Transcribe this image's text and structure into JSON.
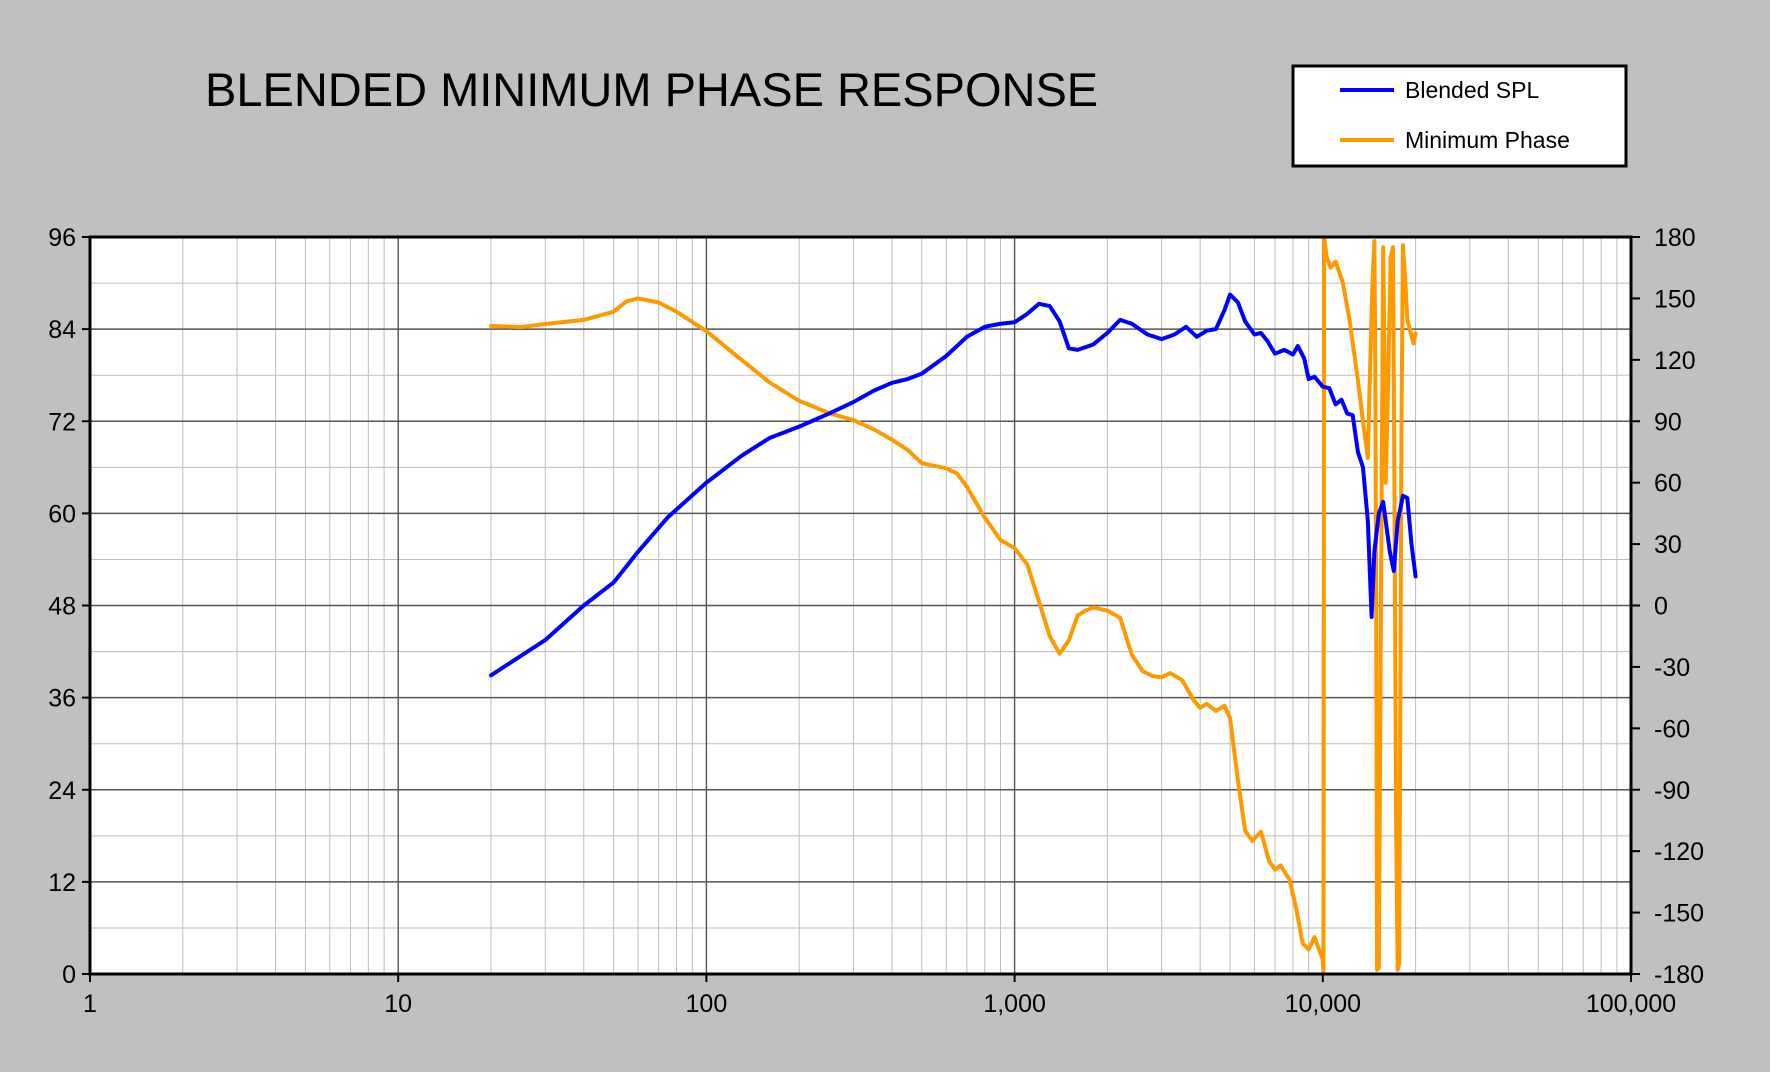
{
  "chart_data": {
    "type": "line",
    "title": "BLENDED MINIMUM PHASE RESPONSE",
    "xlabel": "",
    "ylabel": "",
    "y2label": "",
    "x_scale": "log",
    "xlim": [
      1,
      100000
    ],
    "ylim": [
      0,
      96
    ],
    "y2lim": [
      -180,
      180
    ],
    "grid": true,
    "legend_position": "top-right",
    "x_tick_labels": [
      "1",
      "10",
      "100",
      "1,000",
      "10,000",
      "100,000"
    ],
    "x_tick_values": [
      1,
      10,
      100,
      1000,
      10000,
      100000
    ],
    "y_tick_labels": [
      "0",
      "12",
      "24",
      "36",
      "48",
      "60",
      "72",
      "84",
      "96"
    ],
    "y_tick_values": [
      0,
      12,
      24,
      36,
      48,
      60,
      72,
      84,
      96
    ],
    "y2_tick_labels": [
      "-180",
      "-150",
      "-120",
      "-90",
      "-60",
      "-30",
      "0",
      "30",
      "60",
      "90",
      "120",
      "150",
      "180"
    ],
    "y2_tick_values": [
      -180,
      -150,
      -120,
      -90,
      -60,
      -30,
      0,
      30,
      60,
      90,
      120,
      150,
      180
    ],
    "colors": {
      "background": "#c0c0c0",
      "plot": "#ffffff",
      "spl": "#0000ff",
      "phase": "#ff9900"
    },
    "series": [
      {
        "name": "Blended SPL",
        "axis": "left",
        "color": "#0000ff",
        "points": [
          [
            20,
            38.9
          ],
          [
            30,
            43.5
          ],
          [
            40,
            48.0
          ],
          [
            50,
            51.0
          ],
          [
            60,
            55.0
          ],
          [
            75,
            59.5
          ],
          [
            100,
            64.0
          ],
          [
            130,
            67.5
          ],
          [
            160,
            69.8
          ],
          [
            200,
            71.3
          ],
          [
            250,
            73.0
          ],
          [
            300,
            74.5
          ],
          [
            350,
            76.0
          ],
          [
            400,
            77.0
          ],
          [
            450,
            77.5
          ],
          [
            500,
            78.2
          ],
          [
            600,
            80.5
          ],
          [
            700,
            83.0
          ],
          [
            800,
            84.3
          ],
          [
            900,
            84.7
          ],
          [
            1000,
            84.9
          ],
          [
            1100,
            86.0
          ],
          [
            1200,
            87.3
          ],
          [
            1300,
            87.0
          ],
          [
            1400,
            85.0
          ],
          [
            1500,
            81.5
          ],
          [
            1600,
            81.3
          ],
          [
            1800,
            82.0
          ],
          [
            2000,
            83.5
          ],
          [
            2200,
            85.2
          ],
          [
            2400,
            84.7
          ],
          [
            2700,
            83.3
          ],
          [
            3000,
            82.7
          ],
          [
            3300,
            83.3
          ],
          [
            3600,
            84.3
          ],
          [
            3900,
            83.0
          ],
          [
            4200,
            83.8
          ],
          [
            4500,
            84.0
          ],
          [
            4800,
            86.5
          ],
          [
            5000,
            88.5
          ],
          [
            5300,
            87.5
          ],
          [
            5600,
            85.0
          ],
          [
            6000,
            83.3
          ],
          [
            6300,
            83.5
          ],
          [
            6600,
            82.5
          ],
          [
            7000,
            80.8
          ],
          [
            7500,
            81.3
          ],
          [
            8000,
            80.7
          ],
          [
            8300,
            81.8
          ],
          [
            8700,
            80.2
          ],
          [
            9000,
            77.5
          ],
          [
            9400,
            77.8
          ],
          [
            10000,
            76.5
          ],
          [
            10500,
            76.3
          ],
          [
            11000,
            74.2
          ],
          [
            11500,
            74.8
          ],
          [
            12000,
            73.0
          ],
          [
            12500,
            72.8
          ],
          [
            13000,
            68.0
          ],
          [
            13500,
            66.0
          ],
          [
            14000,
            59.0
          ],
          [
            14400,
            46.5
          ],
          [
            14700,
            55.0
          ],
          [
            15200,
            60.0
          ],
          [
            15700,
            61.5
          ],
          [
            16500,
            55.0
          ],
          [
            17000,
            52.5
          ],
          [
            17500,
            59.0
          ],
          [
            18200,
            62.3
          ],
          [
            18800,
            62.0
          ],
          [
            19400,
            56.0
          ],
          [
            20000,
            51.8
          ]
        ]
      },
      {
        "name": "Minimum Phase",
        "axis": "right",
        "color": "#ff9900",
        "points": [
          [
            20,
            136.5
          ],
          [
            25,
            136.0
          ],
          [
            30,
            137.5
          ],
          [
            40,
            139.5
          ],
          [
            50,
            143.5
          ],
          [
            55,
            148.5
          ],
          [
            60,
            150.0
          ],
          [
            70,
            148.0
          ],
          [
            80,
            143.5
          ],
          [
            100,
            134.0
          ],
          [
            130,
            120.0
          ],
          [
            160,
            109.0
          ],
          [
            200,
            100.0
          ],
          [
            250,
            94.0
          ],
          [
            300,
            90.5
          ],
          [
            350,
            86.0
          ],
          [
            400,
            81.0
          ],
          [
            450,
            76.0
          ],
          [
            500,
            69.5
          ],
          [
            600,
            67.0
          ],
          [
            650,
            64.5
          ],
          [
            700,
            58.0
          ],
          [
            800,
            43.0
          ],
          [
            900,
            32.0
          ],
          [
            1000,
            28.0
          ],
          [
            1100,
            20.0
          ],
          [
            1200,
            2.0
          ],
          [
            1300,
            -15.0
          ],
          [
            1400,
            -23.5
          ],
          [
            1500,
            -17.0
          ],
          [
            1600,
            -5.0
          ],
          [
            1700,
            -2.5
          ],
          [
            1800,
            -1.0
          ],
          [
            2000,
            -2.5
          ],
          [
            2200,
            -6.0
          ],
          [
            2400,
            -24.0
          ],
          [
            2600,
            -32.0
          ],
          [
            2800,
            -34.5
          ],
          [
            3000,
            -35.0
          ],
          [
            3200,
            -33.0
          ],
          [
            3500,
            -36.5
          ],
          [
            3800,
            -46.0
          ],
          [
            4000,
            -50.0
          ],
          [
            4200,
            -48.0
          ],
          [
            4500,
            -51.5
          ],
          [
            4800,
            -49.0
          ],
          [
            5000,
            -55.0
          ],
          [
            5300,
            -85.0
          ],
          [
            5600,
            -110.0
          ],
          [
            5900,
            -115.0
          ],
          [
            6300,
            -110.5
          ],
          [
            6700,
            -125.0
          ],
          [
            7000,
            -129.0
          ],
          [
            7300,
            -127.0
          ],
          [
            7800,
            -134.0
          ],
          [
            8200,
            -148.0
          ],
          [
            8600,
            -165.0
          ],
          [
            9000,
            -168.0
          ],
          [
            9400,
            -162.0
          ],
          [
            10000,
            -173.0
          ],
          [
            10050,
            -179.0
          ],
          [
            10100,
            180.0
          ],
          [
            10300,
            170.0
          ],
          [
            10600,
            165.0
          ],
          [
            11000,
            168.0
          ],
          [
            11600,
            158.0
          ],
          [
            12200,
            140.0
          ],
          [
            13000,
            110.0
          ],
          [
            13500,
            90.0
          ],
          [
            14000,
            72.0
          ],
          [
            14200,
            110.0
          ],
          [
            14500,
            158.0
          ],
          [
            14700,
            178.0
          ],
          [
            14800,
            120.0
          ],
          [
            14900,
            0.0
          ],
          [
            15000,
            -178.0
          ],
          [
            15200,
            -177.0
          ],
          [
            15500,
            40.0
          ],
          [
            15700,
            175.0
          ],
          [
            15800,
            140.0
          ],
          [
            16000,
            60.0
          ],
          [
            16300,
            110.0
          ],
          [
            16600,
            170.0
          ],
          [
            16900,
            175.0
          ],
          [
            17100,
            40.0
          ],
          [
            17300,
            -110.0
          ],
          [
            17500,
            -178.0
          ],
          [
            17700,
            -175.0
          ],
          [
            18000,
            90.0
          ],
          [
            18200,
            176.0
          ],
          [
            18500,
            160.0
          ],
          [
            18800,
            140.0
          ],
          [
            19300,
            133.0
          ],
          [
            19700,
            128.0
          ],
          [
            20000,
            133.0
          ]
        ]
      }
    ]
  }
}
